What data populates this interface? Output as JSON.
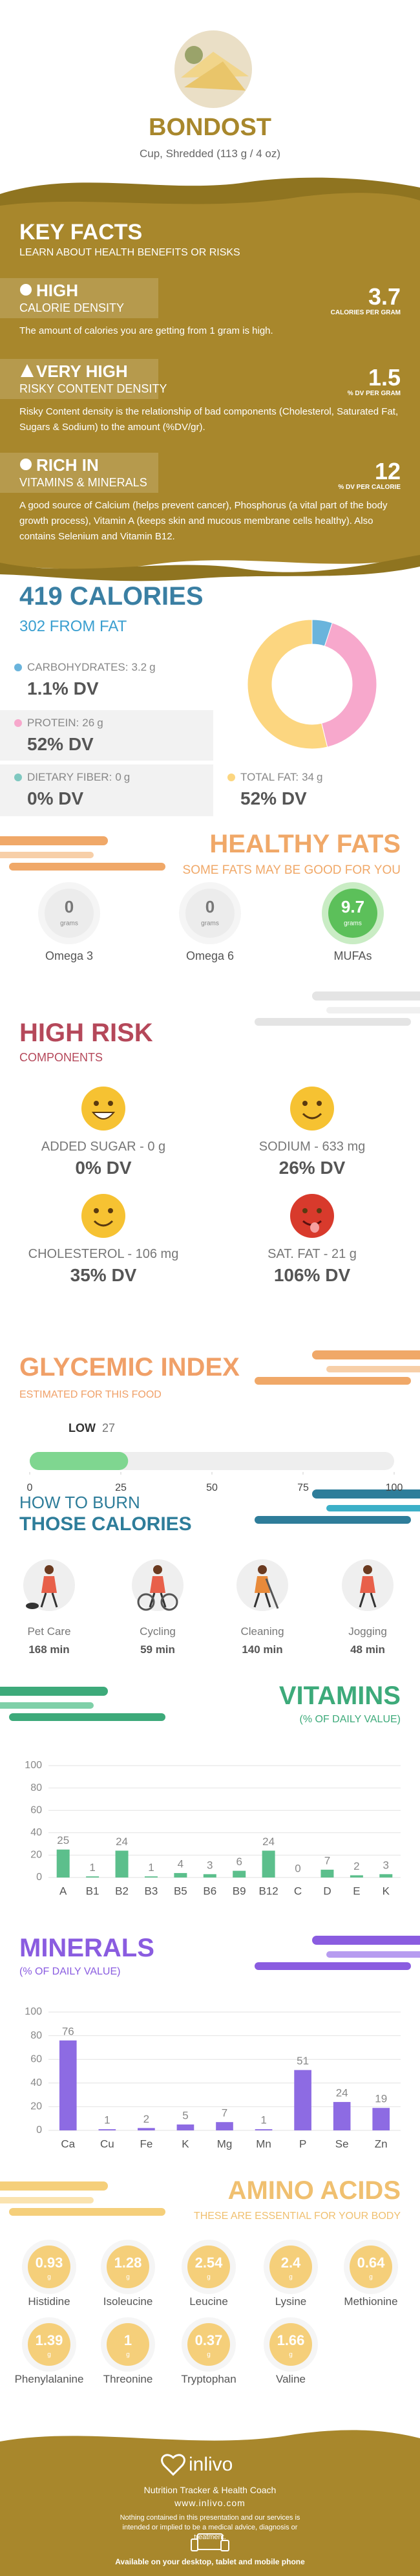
{
  "header": {
    "title": "BONDOST",
    "subtitle": "Cup, Shredded (113 g / 4 oz)"
  },
  "key_facts": {
    "title": "KEY FACTS",
    "subtitle": "LEARN ABOUT HEALTH BENEFITS OR RISKS",
    "items": [
      {
        "level": "HIGH",
        "name": "CALORIE DENSITY",
        "value": 3.7,
        "unit": "CALORIES PER GRAM",
        "text": "The amount of calories you are getting from 1 gram is high."
      },
      {
        "level": "VERY HIGH",
        "name": "RISKY CONTENT DENSITY",
        "value": 1.5,
        "unit": "% DV PER GRAM",
        "text": "Risky Content density is the relationship of bad components (Cholesterol, Saturated Fat, Sugars & Sodium) to the amount (%DV/gr)."
      },
      {
        "level": "RICH IN",
        "name": "VITAMINS & MINERALS",
        "value": 12,
        "unit": "% DV PER CALORIE",
        "text": "A good source of Calcium (helps prevent cancer), Phosphorus (a vital part of the body growth process), Vitamin A (keeps skin and mucous membrane cells healthy). Also contains Selenium and Vitamin B12."
      }
    ]
  },
  "calories": {
    "title": "419 CALORIES",
    "subtitle": "302 FROM FAT",
    "nutrients": [
      {
        "name": "CARBOHYDRATES:",
        "amount": 3.2,
        "unit": "g",
        "dv": "1.1% DV",
        "color": "#6ab4dc"
      },
      {
        "name": "PROTEIN:",
        "amount": 26,
        "unit": "g",
        "dv": "52% DV",
        "color": "#f7a8cc"
      },
      {
        "name": "DIETARY FIBER:",
        "amount": 0,
        "unit": "g",
        "dv": "0% DV",
        "color": "#7fc8c0"
      },
      {
        "name": "TOTAL FAT:",
        "amount": 34,
        "unit": "g",
        "dv": "52% DV",
        "color": "#fcd680"
      }
    ]
  },
  "healthy_fats": {
    "title": "HEALTHY FATS",
    "subtitle": "SOME FATS MAY BE GOOD FOR YOU",
    "items": [
      {
        "name": "Omega 3",
        "value": 0,
        "unit": "grams"
      },
      {
        "name": "Omega 6",
        "value": 0,
        "unit": "grams"
      },
      {
        "name": "MUFAs",
        "value": 9.7,
        "unit": "grams"
      }
    ]
  },
  "high_risk": {
    "title": "HIGH RISK",
    "subtitle": "COMPONENTS",
    "items": [
      {
        "label": "ADDED SUGAR - 0 g",
        "dv": "0% DV"
      },
      {
        "label": "SODIUM - 633 mg",
        "dv": "26% DV"
      },
      {
        "label": "CHOLESTEROL - 106 mg",
        "dv": "35% DV"
      },
      {
        "label": "SAT. FAT - 21 g",
        "dv": "106% DV"
      }
    ]
  },
  "glycemic": {
    "title": "GLYCEMIC INDEX",
    "subtitle": "ESTIMATED FOR THIS FOOD",
    "level": "LOW",
    "value": 27,
    "xlim": [
      0,
      100
    ],
    "xticks": [
      0,
      25,
      50,
      75,
      100
    ]
  },
  "burn": {
    "title": "HOW TO BURN",
    "subtitle": "THOSE CALORIES",
    "activities": [
      {
        "name": "Pet Care",
        "time": "168 min"
      },
      {
        "name": "Cycling",
        "time": "59 min"
      },
      {
        "name": "Cleaning",
        "time": "140 min"
      },
      {
        "name": "Jogging",
        "time": "48 min"
      }
    ]
  },
  "chart_data": [
    {
      "type": "bar",
      "title": "VITAMINS",
      "subtitle": "(% OF DAILY VALUE)",
      "categories": [
        "A",
        "B1",
        "B2",
        "B3",
        "B5",
        "B6",
        "B9",
        "B12",
        "C",
        "D",
        "E",
        "K"
      ],
      "values": [
        25,
        1,
        24,
        1,
        4,
        3,
        6,
        24,
        0,
        7,
        2,
        3
      ],
      "color": "#5cbf8c",
      "ylim": [
        0,
        100
      ],
      "yticks": [
        0,
        20,
        40,
        60,
        80,
        100
      ],
      "grid": true
    },
    {
      "type": "bar",
      "title": "MINERALS",
      "subtitle": "(% OF DAILY VALUE)",
      "categories": [
        "Ca",
        "Cu",
        "Fe",
        "K",
        "Mg",
        "Mn",
        "P",
        "Se",
        "Zn"
      ],
      "values": [
        76,
        1,
        2,
        5,
        7,
        1,
        51,
        24,
        19
      ],
      "color": "#8d6be3",
      "ylim": [
        0,
        100
      ],
      "yticks": [
        0,
        20,
        40,
        60,
        80,
        100
      ],
      "grid": true
    }
  ],
  "amino_acids": {
    "title": "AMINO ACIDS",
    "subtitle": "THESE ARE ESSENTIAL FOR YOUR BODY",
    "unit": "g",
    "items": [
      {
        "name": "Histidine",
        "value": 0.93
      },
      {
        "name": "Isoleucine",
        "value": 1.28
      },
      {
        "name": "Leucine",
        "value": 2.54
      },
      {
        "name": "Lysine",
        "value": 2.4
      },
      {
        "name": "Methionine",
        "value": 0.64
      },
      {
        "name": "Phenylalanine",
        "value": 1.39
      },
      {
        "name": "Threonine",
        "value": 1
      },
      {
        "name": "Tryptophan",
        "value": 0.37
      },
      {
        "name": "Valine",
        "value": 1.66
      }
    ]
  },
  "footer": {
    "brand": "inlivo",
    "tagline": "Nutrition Tracker & Health Coach",
    "url": "www.inlivo.com",
    "disclaimer": "Nothing contained in this presentation and our services is intended or implied to be a medical advice, diagnosis or treatment.",
    "availability": "Available on your desktop, tablet and mobile phone"
  }
}
